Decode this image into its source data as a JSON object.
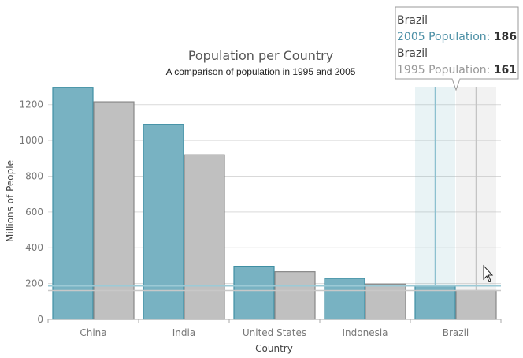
{
  "chart_data": {
    "type": "bar",
    "title": "Population per Country",
    "subtitle": "A comparison of population in 1995 and 2005",
    "xlabel": "Country",
    "ylabel": "Millions of People",
    "categories": [
      "China",
      "India",
      "United States",
      "Indonesia",
      "Brazil"
    ],
    "series": [
      {
        "name": "2005 Population",
        "values": [
          1297,
          1090,
          297,
          229,
          186
        ],
        "color": "#78B2C2"
      },
      {
        "name": "1995 Population",
        "values": [
          1216,
          920,
          266,
          197,
          161
        ],
        "color": "#C0C0C0"
      }
    ],
    "ylim": [
      0,
      1300
    ],
    "yticks": [
      0,
      200,
      400,
      600,
      800,
      1000,
      1200
    ],
    "grid": true,
    "legend": "none",
    "highlighted_category": "Brazil",
    "tooltip": {
      "rows": [
        {
          "category": "Brazil",
          "series": "2005 Population",
          "value": 186,
          "color": "#4B8FA5"
        },
        {
          "category": "Brazil",
          "series": "1995 Population",
          "value": 161,
          "color": "#999999"
        }
      ]
    }
  }
}
